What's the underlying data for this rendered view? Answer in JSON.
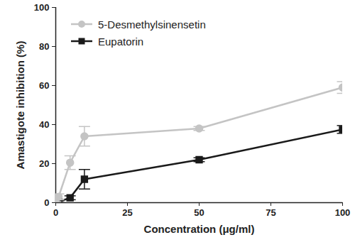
{
  "chart_data": {
    "type": "line",
    "x_label": "Concentration (μg/ml)",
    "y_label": "Amastigote inhibition (%)",
    "x": [
      0,
      1,
      5,
      10,
      50,
      100
    ],
    "series": [
      {
        "name": "5-Desmethylsinensetin",
        "color": "#c4c4c4",
        "marker": "circle",
        "values": [
          0,
          3,
          20.5,
          34,
          38,
          59
        ],
        "errors": [
          0.5,
          1.5,
          3.5,
          5,
          1,
          3
        ]
      },
      {
        "name": "Eupatorin",
        "color": "#1a1a1a",
        "marker": "square",
        "values": [
          0,
          0.5,
          2.5,
          12,
          22,
          37.5
        ],
        "errors": [
          0.5,
          0.5,
          1,
          5,
          1,
          2
        ]
      }
    ],
    "xlim": [
      0,
      100
    ],
    "xticks": [
      0,
      25,
      50,
      75,
      100
    ],
    "ylim": [
      0,
      100
    ],
    "yticks": [
      0,
      20,
      40,
      60,
      80,
      100
    ],
    "grid": false,
    "legend": "top-left"
  }
}
